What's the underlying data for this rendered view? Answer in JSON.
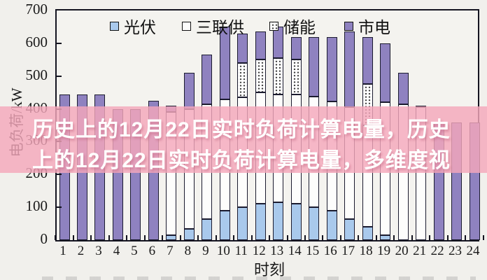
{
  "banner": {
    "line1": "历史上的12月22日实时负荷计算电量，历史",
    "line2": "上的12月22日实时负荷计算电量，多维度视",
    "bg_color": "#f4a7bb",
    "text_color": "#ffffff"
  },
  "chart_data": {
    "type": "bar",
    "stacked": true,
    "title": "",
    "xlabel": "时刻",
    "ylabel": "电负荷/kW",
    "ylim": [
      0,
      700
    ],
    "yticks": [
      0,
      100,
      200,
      300,
      400,
      500,
      600,
      700
    ],
    "grid": false,
    "legend_position": "top-inside",
    "categories": [
      "1",
      "2",
      "3",
      "4",
      "5",
      "6",
      "7",
      "8",
      "9",
      "10",
      "11",
      "12",
      "13",
      "14",
      "15",
      "16",
      "17",
      "18",
      "19",
      "20",
      "21",
      "22",
      "23",
      "24"
    ],
    "series": [
      {
        "name": "光伏",
        "color": "#a9c9ec",
        "pattern": "solid",
        "values": [
          0,
          0,
          0,
          0,
          0,
          0,
          15,
          35,
          65,
          90,
          100,
          110,
          115,
          110,
          100,
          90,
          65,
          40,
          15,
          0,
          0,
          0,
          0,
          0
        ]
      },
      {
        "name": "三联供",
        "color": "#fdfdfc",
        "pattern": "solid",
        "values": [
          0,
          0,
          0,
          0,
          0,
          0,
          375,
          365,
          350,
          340,
          335,
          340,
          330,
          335,
          337,
          333,
          340,
          310,
          405,
          413,
          405,
          0,
          0,
          0
        ]
      },
      {
        "name": "储能",
        "color": "#ffffff",
        "pattern": "dots",
        "values": [
          0,
          0,
          0,
          0,
          0,
          0,
          0,
          0,
          0,
          0,
          105,
          100,
          110,
          105,
          0,
          0,
          0,
          127,
          0,
          0,
          0,
          0,
          0,
          0
        ]
      },
      {
        "name": "市电",
        "color": "#8f82c0",
        "pattern": "solid",
        "values": [
          445,
          445,
          445,
          400,
          400,
          425,
          20,
          110,
          150,
          220,
          90,
          85,
          95,
          70,
          183,
          197,
          230,
          143,
          180,
          97,
          5,
          360,
          358,
          358
        ]
      }
    ]
  }
}
